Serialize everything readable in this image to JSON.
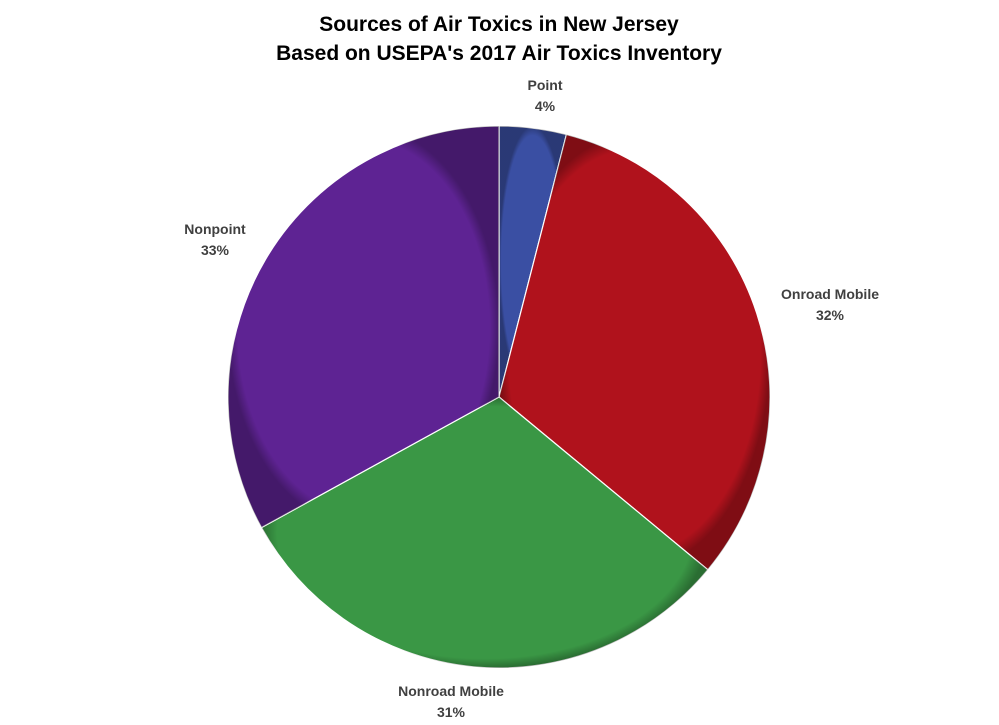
{
  "chart_data": {
    "type": "pie",
    "title": "Sources of Air Toxics in New Jersey",
    "subtitle": "Based on USEPA's 2017 Air Toxics Inventory",
    "slices": [
      {
        "label": "Point",
        "value": 4,
        "value_label": "4%",
        "color": "#3a4fa3"
      },
      {
        "label": "Onroad Mobile",
        "value": 32,
        "value_label": "32%",
        "color": "#b0121c"
      },
      {
        "label": "Nonroad Mobile",
        "value": 31,
        "value_label": "31%",
        "color": "#3a9745"
      },
      {
        "label": "Nonpoint",
        "value": 33,
        "value_label": "33%",
        "color": "#5e2393"
      }
    ],
    "start": "12 o'clock",
    "direction": "clockwise",
    "legend": "none"
  }
}
